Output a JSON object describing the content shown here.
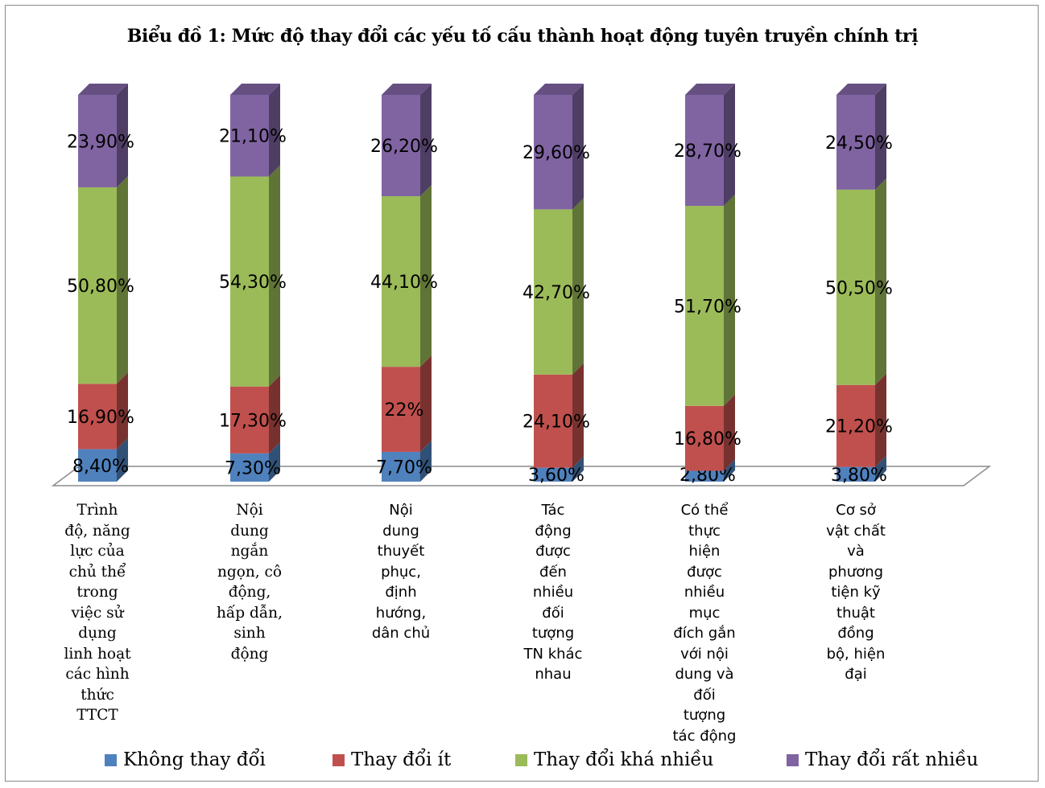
{
  "chart_data": {
    "type": "bar",
    "stacked": true,
    "three_d": true,
    "title": "Biểu đồ 1: Mức độ  thay đổi các yếu tố  cấu thành hoạt động tuyên truyền chính trị",
    "categories": [
      "Trình độ, năng lực của chủ thể trong việc sử dụng linh hoạt các hình thức TTCT",
      "Nội dung ngắn ngọn, cô động, hấp dẫn, sinh động",
      "Nội dung thuyết phục, định hướng, dân chủ",
      "Tác động được đến nhiều đối tượng TN khác nhau",
      "Có thể thực hiện được nhiều mục đích gắn với nội dung và đối tượng tác động",
      "Cơ sở vật chất và phương tiện kỹ thuật đồng bộ, hiện đại"
    ],
    "category_lines": [
      [
        "Trình",
        "độ, năng",
        "lực của",
        "chủ thể",
        "trong",
        "việc sử",
        "dụng",
        "linh hoạt",
        "các hình",
        "thức",
        "TTCT"
      ],
      [
        "Nội",
        "dung",
        "ngắn",
        "ngọn, cô",
        "động,",
        "hấp dẫn,",
        "sinh",
        "động"
      ],
      [
        "Nội",
        "dung",
        "thuyết",
        "phục,",
        "định",
        "hướng,",
        "dân chủ"
      ],
      [
        "Tác",
        "động",
        "được",
        "đến",
        "nhiều",
        "đối",
        "tượng",
        "TN khác",
        "nhau"
      ],
      [
        "Có thể",
        "thực",
        "hiện",
        "được",
        "nhiều",
        "mục",
        "đích gắn",
        "với nội",
        "dung và",
        "đối",
        "tượng",
        "tác động"
      ],
      [
        "Cơ sở",
        "vật chất",
        "và",
        "phương",
        "tiện kỹ",
        "thuật",
        "đồng",
        "bộ, hiện",
        "đại"
      ]
    ],
    "series": [
      {
        "name": "Không thay đổi",
        "color": "#4F81BD",
        "values": [
          8.4,
          7.3,
          7.7,
          3.6,
          2.8,
          3.8
        ],
        "labels": [
          "8,40%",
          "7,30%",
          "7,70%",
          "3,60%",
          "2,80%",
          "3,80%"
        ]
      },
      {
        "name": "Thay đổi ít",
        "color": "#C0504D",
        "values": [
          16.9,
          17.3,
          22,
          24.1,
          16.8,
          21.2
        ],
        "labels": [
          "16,90%",
          "17,30%",
          "22%",
          "24,10%",
          "16,80%",
          "21,20%"
        ]
      },
      {
        "name": "Thay đổi khá nhiều",
        "color": "#9BBB59",
        "values": [
          50.8,
          54.3,
          44.1,
          42.7,
          51.7,
          50.5
        ],
        "labels": [
          "50,80%",
          "54,30%",
          "44,10%",
          "42,70%",
          "51,70%",
          "50,50%"
        ]
      },
      {
        "name": "Thay đổi rất nhiều",
        "color": "#8064A2",
        "values": [
          23.9,
          21.1,
          26.2,
          29.6,
          28.7,
          24.5
        ],
        "labels": [
          "23,90%",
          "21,10%",
          "26,20%",
          "29,60%",
          "28,70%",
          "24,50%"
        ]
      }
    ],
    "ylim": [
      0,
      100
    ],
    "legend_position": "bottom",
    "grid": false
  }
}
